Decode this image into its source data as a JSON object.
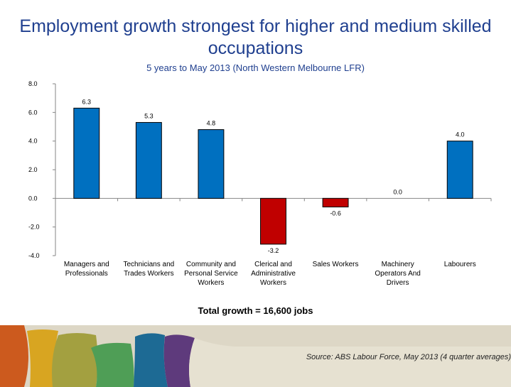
{
  "title": "Employment growth strongest for higher and medium skilled occupations",
  "subtitle": "5 years to May 2013 (North Western Melbourne  LFR)",
  "total_text": "Total growth = 16,600 jobs",
  "source_text": "Source: ABS Labour Force, May 2013 (4 quarter averages)",
  "colors": {
    "positive": "#0070c0",
    "negative": "#c00000",
    "title": "#1f3f8f"
  },
  "chart_data": {
    "type": "bar",
    "categories": [
      [
        "Managers and",
        "Professionals"
      ],
      [
        "Technicians and",
        "Trades Workers"
      ],
      [
        "Community and",
        "Personal Service",
        "Workers"
      ],
      [
        "Clerical and",
        "Administrative",
        "Workers"
      ],
      [
        "Sales Workers"
      ],
      [
        "Machinery",
        "Operators And",
        "Drivers"
      ],
      [
        "Labourers"
      ]
    ],
    "values": [
      6.3,
      5.3,
      4.8,
      -3.2,
      -0.6,
      0.0,
      4.0
    ],
    "data_labels": [
      "6.3",
      "5.3",
      "4.8",
      "-3.2",
      "-0.6",
      "0.0",
      "4.0"
    ],
    "ylim": [
      -4.0,
      8.0
    ],
    "yticks": [
      "8.0",
      "6.0",
      "4.0",
      "2.0",
      "0.0",
      "-2.0",
      "-4.0"
    ],
    "grid": false
  }
}
